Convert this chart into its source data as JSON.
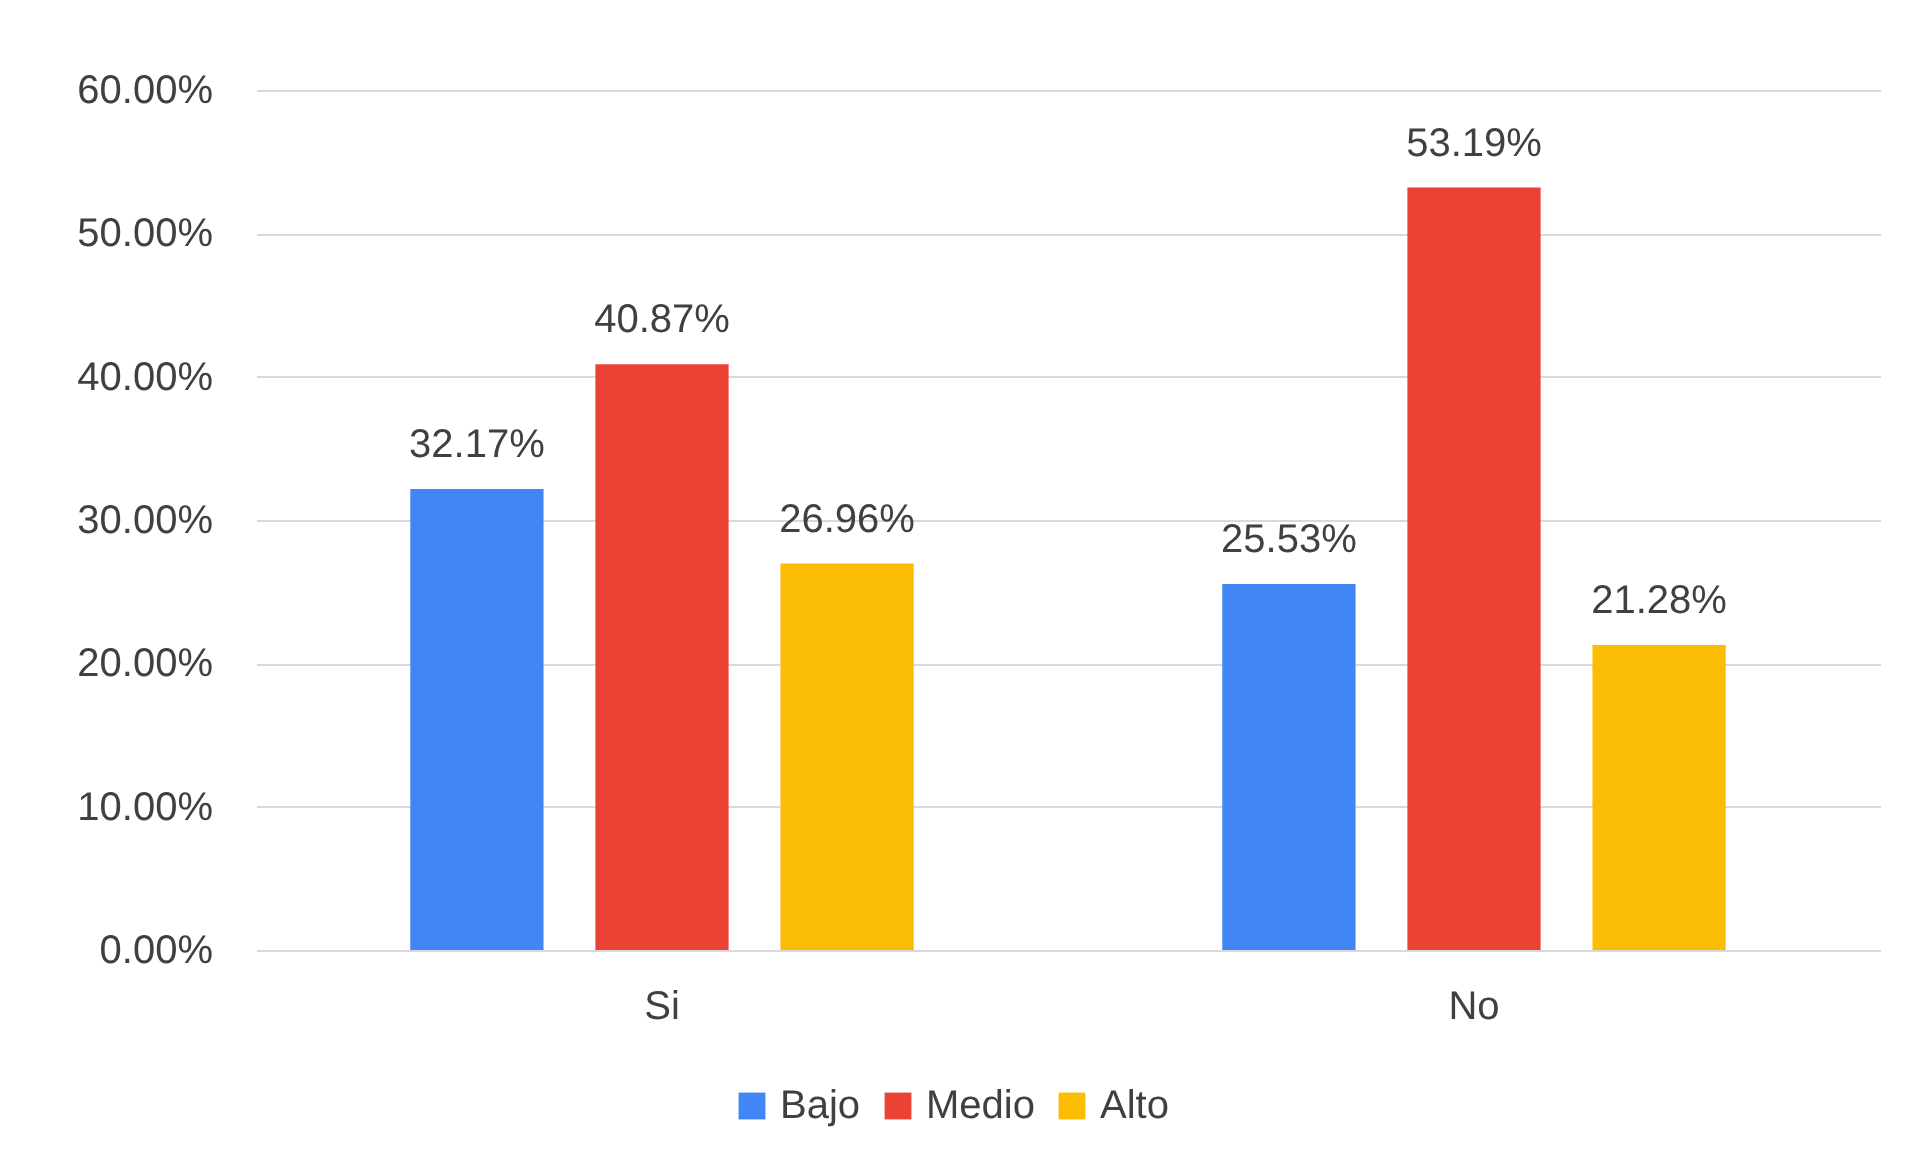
{
  "chart_data": {
    "type": "bar",
    "categories": [
      "Si",
      "No"
    ],
    "series": [
      {
        "name": "Bajo",
        "color": "#4285f4",
        "values": [
          32.17,
          25.53
        ],
        "value_labels": [
          "32.17%",
          "25.53%"
        ]
      },
      {
        "name": "Medio",
        "color": "#ea4335",
        "values": [
          40.87,
          53.19
        ],
        "value_labels": [
          "40.87%",
          "53.19%"
        ]
      },
      {
        "name": "Alto",
        "color": "#fbbc04",
        "values": [
          26.96,
          21.28
        ],
        "value_labels": [
          "26.96%",
          "21.28%"
        ]
      }
    ],
    "ylim": [
      0,
      60
    ],
    "yticks": [
      {
        "value": 0,
        "label": "0.00%"
      },
      {
        "value": 10,
        "label": "10.00%"
      },
      {
        "value": 20,
        "label": "20.00%"
      },
      {
        "value": 30,
        "label": "30.00%"
      },
      {
        "value": 40,
        "label": "40.00%"
      },
      {
        "value": 50,
        "label": "50.00%"
      },
      {
        "value": 60,
        "label": "60.00%"
      }
    ],
    "grid": "y",
    "legend": "bottom"
  }
}
